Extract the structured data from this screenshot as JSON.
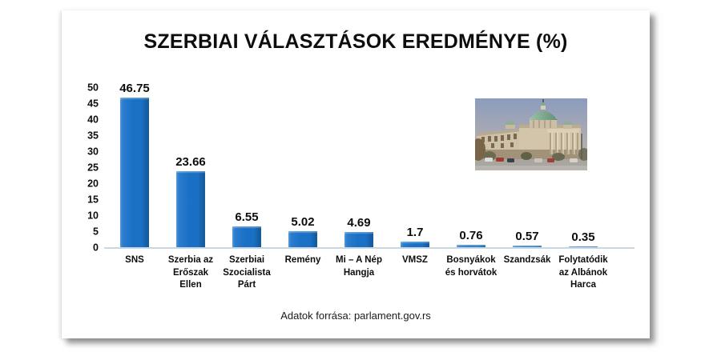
{
  "chart_data": {
    "type": "bar",
    "title": "SZERBIAI VÁLASZTÁSOK EREDMÉNYE (%)",
    "categories": [
      "SNS",
      "Szerbia az Erőszak Ellen",
      "Szerbiai Szocialista Párt",
      "Remény",
      "Mi – A Nép Hangja",
      "VMSZ",
      "Bosnyákok és horvátok",
      "Szandzsák",
      "Folytatódik az Albánok Harca"
    ],
    "values": [
      46.75,
      23.66,
      6.55,
      5.02,
      4.69,
      1.7,
      0.76,
      0.57,
      0.35
    ],
    "value_labels": [
      "46.75",
      "23.66",
      "6.55",
      "5.02",
      "4.69",
      "1.7",
      "0.76",
      "0.57",
      "0.35"
    ],
    "xlabel": "",
    "ylabel": "",
    "ylim": [
      0,
      50
    ],
    "yticks": [
      0,
      5,
      10,
      15,
      20,
      25,
      30,
      35,
      40,
      45,
      50
    ],
    "grid": false,
    "legend": false,
    "bar_color": "#1b70c4",
    "axis_line_color": "#c7d7e4",
    "source": "Adatok forrása: parlament.gov.rs"
  },
  "photo": {
    "description": "Serbian Parliament building photo",
    "sky_color": "#8b9cbe",
    "facade_color": "#d0c2a8",
    "dome_color": "#7fa98e",
    "road_color": "#a9a5a0"
  }
}
